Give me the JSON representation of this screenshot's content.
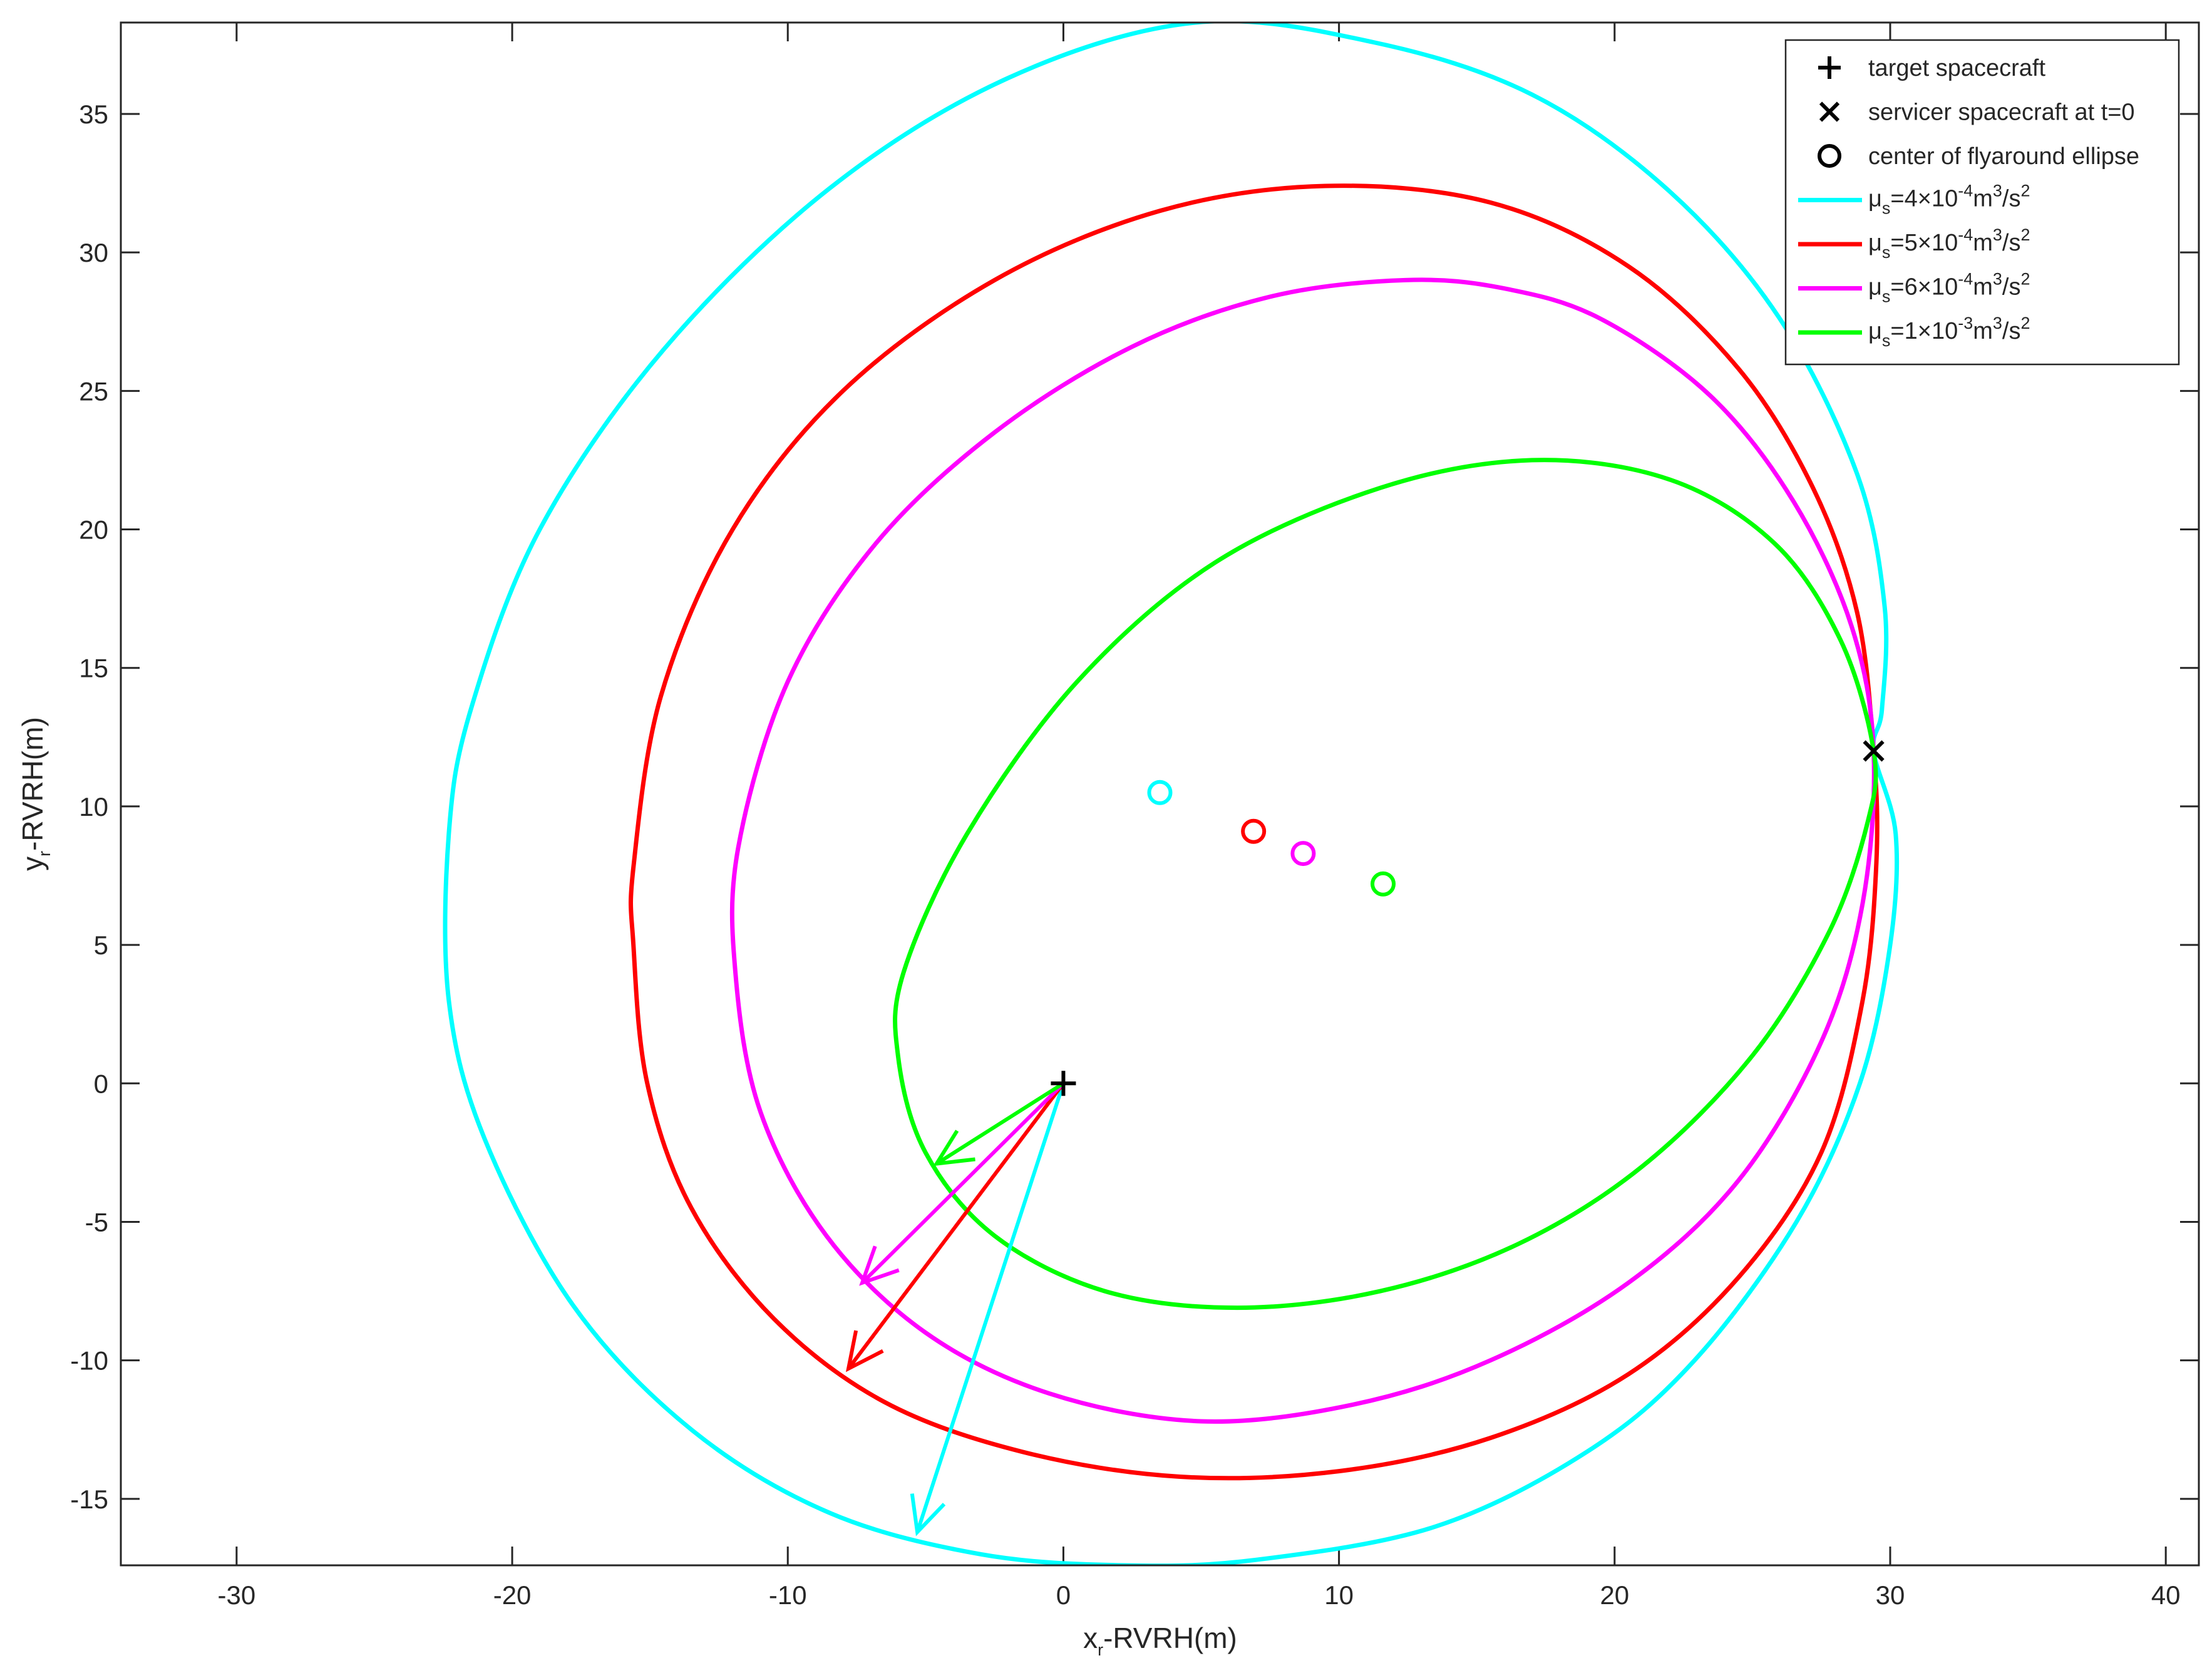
{
  "chart_data": {
    "type": "line",
    "title": "",
    "xlabel": "x",
    "xlabel_sub": "r",
    "xlabel_rest": "-RVRH(m)",
    "ylabel": "y",
    "ylabel_sub": "r",
    "ylabel_rest": "-RVRH(m)",
    "xlim": [
      -34.2,
      41.2
    ],
    "ylim": [
      -17.4,
      38.3
    ],
    "xticks": [
      -30,
      -20,
      -10,
      0,
      10,
      20,
      30,
      40
    ],
    "xtick_labels": [
      "-30",
      "-20",
      "-10",
      "0",
      "10",
      "20",
      "30",
      "40"
    ],
    "yticks": [
      -15,
      -10,
      -5,
      0,
      5,
      10,
      15,
      20,
      25,
      30,
      35
    ],
    "ytick_labels": [
      "-15",
      "-10",
      "-5",
      "0",
      "5",
      "10",
      "15",
      "20",
      "25",
      "30",
      "35"
    ],
    "grid": false,
    "legend_position": "top-right",
    "markers": [
      {
        "name": "target spacecraft",
        "symbol": "plus",
        "x": 0,
        "y": 0,
        "color": "#000000"
      },
      {
        "name": "servicer spacecraft at t=0",
        "symbol": "cross",
        "x": 29.4,
        "y": 12.0,
        "color": "#000000"
      },
      {
        "name": "center of flyaround ellipse",
        "symbol": "circle",
        "color": "#000000"
      }
    ],
    "series": [
      {
        "label": {
          "mu": "μ",
          "sub": "s",
          "coef": "=4",
          "times": "×",
          "base": "10",
          "exp": "-4",
          "unit": "m",
          "unit_exp": "3",
          "slash": "/s",
          "slash_exp": "2"
        },
        "color": "#00ffff",
        "trajectory": [
          [
            4.8,
            38.3
          ],
          [
            11.2,
            37.6
          ],
          [
            17.0,
            35.7
          ],
          [
            22.0,
            32.2
          ],
          [
            26.0,
            27.6
          ],
          [
            28.8,
            22.0
          ],
          [
            29.8,
            17.2
          ],
          [
            29.7,
            13.5
          ],
          [
            29.4,
            12.0
          ],
          [
            30.2,
            9.0
          ],
          [
            30.0,
            5.0
          ],
          [
            28.9,
            0.0
          ],
          [
            26.6,
            -5.0
          ],
          [
            22.9,
            -10.0
          ],
          [
            19.0,
            -13.3
          ],
          [
            13.5,
            -16.0
          ],
          [
            7.0,
            -17.2
          ],
          [
            2.2,
            -17.4
          ],
          [
            -3.0,
            -17.0
          ],
          [
            -8.5,
            -15.5
          ],
          [
            -13.5,
            -12.5
          ],
          [
            -17.8,
            -8.0
          ],
          [
            -21.0,
            -2.0
          ],
          [
            -22.3,
            3.0
          ],
          [
            -22.3,
            9.0
          ],
          [
            -21.5,
            13.5
          ],
          [
            -19.0,
            20.0
          ],
          [
            -14.5,
            26.5
          ],
          [
            -8.5,
            32.3
          ],
          [
            -2.0,
            36.3
          ],
          [
            4.8,
            38.3
          ]
        ],
        "center": [
          3.5,
          10.5
        ],
        "arrow_tip": [
          -5.3,
          -16.2
        ]
      },
      {
        "label": {
          "mu": "μ",
          "sub": "s",
          "coef": "=5",
          "times": "×",
          "base": "10",
          "exp": "-4",
          "unit": "m",
          "unit_exp": "3",
          "slash": "/s",
          "slash_exp": "2"
        },
        "color": "#ff0000",
        "trajectory": [
          [
            29.4,
            12.0
          ],
          [
            28.8,
            17.0
          ],
          [
            27.2,
            21.5
          ],
          [
            24.5,
            25.8
          ],
          [
            20.5,
            29.5
          ],
          [
            15.5,
            31.8
          ],
          [
            9.5,
            32.4
          ],
          [
            3.5,
            31.5
          ],
          [
            -2.5,
            29.0
          ],
          [
            -8.0,
            25.0
          ],
          [
            -12.0,
            20.0
          ],
          [
            -14.6,
            14.0
          ],
          [
            -15.6,
            7.8
          ],
          [
            -15.6,
            5.0
          ],
          [
            -15.1,
            0.0
          ],
          [
            -13.5,
            -4.5
          ],
          [
            -10.5,
            -8.5
          ],
          [
            -6.5,
            -11.5
          ],
          [
            -1.5,
            -13.3
          ],
          [
            4.2,
            -14.2
          ],
          [
            10.0,
            -14.0
          ],
          [
            15.5,
            -12.8
          ],
          [
            20.5,
            -10.5
          ],
          [
            24.5,
            -7.0
          ],
          [
            27.5,
            -2.5
          ],
          [
            29.0,
            3.0
          ],
          [
            29.5,
            8.0
          ],
          [
            29.4,
            12.0
          ]
        ],
        "center": [
          6.9,
          9.1
        ],
        "arrow_tip": [
          -7.8,
          -10.3
        ]
      },
      {
        "label": {
          "mu": "μ",
          "sub": "s",
          "coef": "=6",
          "times": "×",
          "base": "10",
          "exp": "-4",
          "unit": "m",
          "unit_exp": "3",
          "slash": "/s",
          "slash_exp": "2"
        },
        "color": "#ff00ff",
        "trajectory": [
          [
            29.4,
            12.0
          ],
          [
            28.6,
            16.5
          ],
          [
            26.5,
            21.0
          ],
          [
            23.5,
            24.8
          ],
          [
            19.5,
            27.6
          ],
          [
            16.0,
            28.7
          ],
          [
            12.4,
            29.0
          ],
          [
            7.5,
            28.4
          ],
          [
            2.5,
            26.6
          ],
          [
            -2.5,
            23.5
          ],
          [
            -6.8,
            19.5
          ],
          [
            -10.0,
            14.5
          ],
          [
            -11.8,
            8.5
          ],
          [
            -11.9,
            4.0
          ],
          [
            -11.0,
            -1.0
          ],
          [
            -8.6,
            -5.5
          ],
          [
            -5.0,
            -9.0
          ],
          [
            -0.5,
            -11.2
          ],
          [
            5.0,
            -12.2
          ],
          [
            10.5,
            -11.6
          ],
          [
            15.5,
            -10.0
          ],
          [
            20.5,
            -7.2
          ],
          [
            24.5,
            -3.5
          ],
          [
            27.5,
            1.5
          ],
          [
            29.0,
            6.5
          ],
          [
            29.4,
            12.0
          ]
        ],
        "center": [
          8.7,
          8.3
        ],
        "arrow_tip": [
          -7.3,
          -7.2
        ]
      },
      {
        "label": {
          "mu": "μ",
          "sub": "s",
          "coef": "=1",
          "times": "×",
          "base": "10",
          "exp": "-3",
          "unit": "m",
          "unit_exp": "3",
          "slash": "/s",
          "slash_exp": "2"
        },
        "color": "#00ff00",
        "trajectory": [
          [
            29.4,
            12.0
          ],
          [
            28.2,
            16.0
          ],
          [
            25.8,
            19.5
          ],
          [
            22.0,
            21.8
          ],
          [
            17.0,
            22.5
          ],
          [
            11.5,
            21.5
          ],
          [
            5.5,
            18.8
          ],
          [
            0.5,
            14.5
          ],
          [
            -3.5,
            9.0
          ],
          [
            -5.8,
            4.0
          ],
          [
            -6.0,
            1.0
          ],
          [
            -5.0,
            -2.5
          ],
          [
            -2.5,
            -5.5
          ],
          [
            1.5,
            -7.5
          ],
          [
            6.3,
            -8.1
          ],
          [
            11.5,
            -7.5
          ],
          [
            16.5,
            -5.8
          ],
          [
            21.0,
            -3.0
          ],
          [
            25.0,
            1.0
          ],
          [
            27.8,
            5.5
          ],
          [
            29.2,
            9.5
          ],
          [
            29.4,
            12.0
          ]
        ],
        "center": [
          11.6,
          7.2
        ],
        "arrow_tip": [
          -4.6,
          -2.9
        ]
      }
    ],
    "legend": [
      {
        "kind": "marker",
        "symbol": "plus",
        "text": "target spacecraft"
      },
      {
        "kind": "marker",
        "symbol": "cross",
        "text": "servicer spacecraft at t=0"
      },
      {
        "kind": "marker",
        "symbol": "circle",
        "text": "center of flyaround ellipse"
      },
      {
        "kind": "series",
        "series_index": 0
      },
      {
        "kind": "series",
        "series_index": 1
      },
      {
        "kind": "series",
        "series_index": 2
      },
      {
        "kind": "series",
        "series_index": 3
      }
    ]
  }
}
